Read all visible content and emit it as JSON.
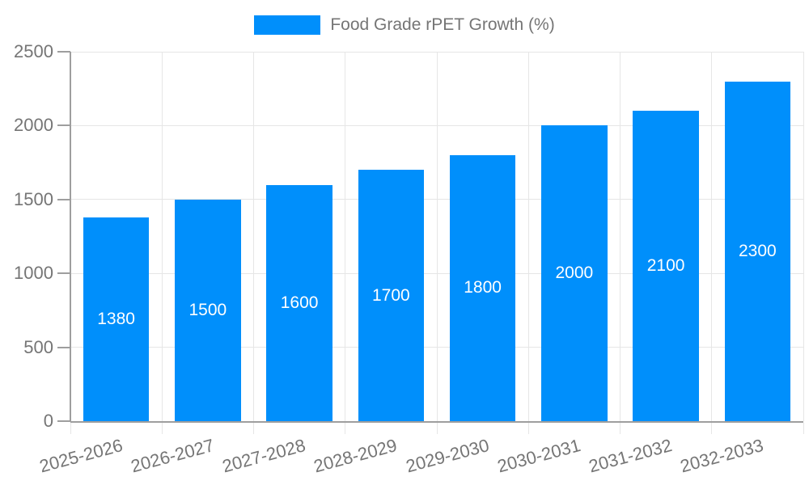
{
  "chart_data": {
    "type": "bar",
    "title": "Food Grade rPET Growth (%)",
    "legend": {
      "label": "Food Grade rPET Growth (%)",
      "position": "top"
    },
    "categories": [
      "2025-2026",
      "2026-2027",
      "2027-2028",
      "2028-2029",
      "2029-2030",
      "2030-2031",
      "2031-2032",
      "2032-2033"
    ],
    "series": [
      {
        "name": "Food Grade rPET Growth (%)",
        "values": [
          1380,
          1500,
          1600,
          1700,
          1800,
          2000,
          2100,
          2300
        ],
        "value_labels": [
          "1380",
          "1500",
          "1600",
          "1700",
          "1800",
          "2000",
          "2100",
          "2300"
        ]
      }
    ],
    "xlabel": "",
    "ylabel": "",
    "ylim": [
      0,
      2500
    ],
    "yticks": [
      0,
      500,
      1000,
      1500,
      2000,
      2500
    ],
    "ytick_labels": [
      "0",
      "500",
      "1000",
      "1500",
      "2000",
      "2500"
    ],
    "grid": true,
    "colors": {
      "bar": "#008FFB",
      "axis_label": "#757575",
      "value_label": "#FFFFFF",
      "gridline": "#E6E6E6",
      "axis_line": "#9E9E9E"
    }
  }
}
